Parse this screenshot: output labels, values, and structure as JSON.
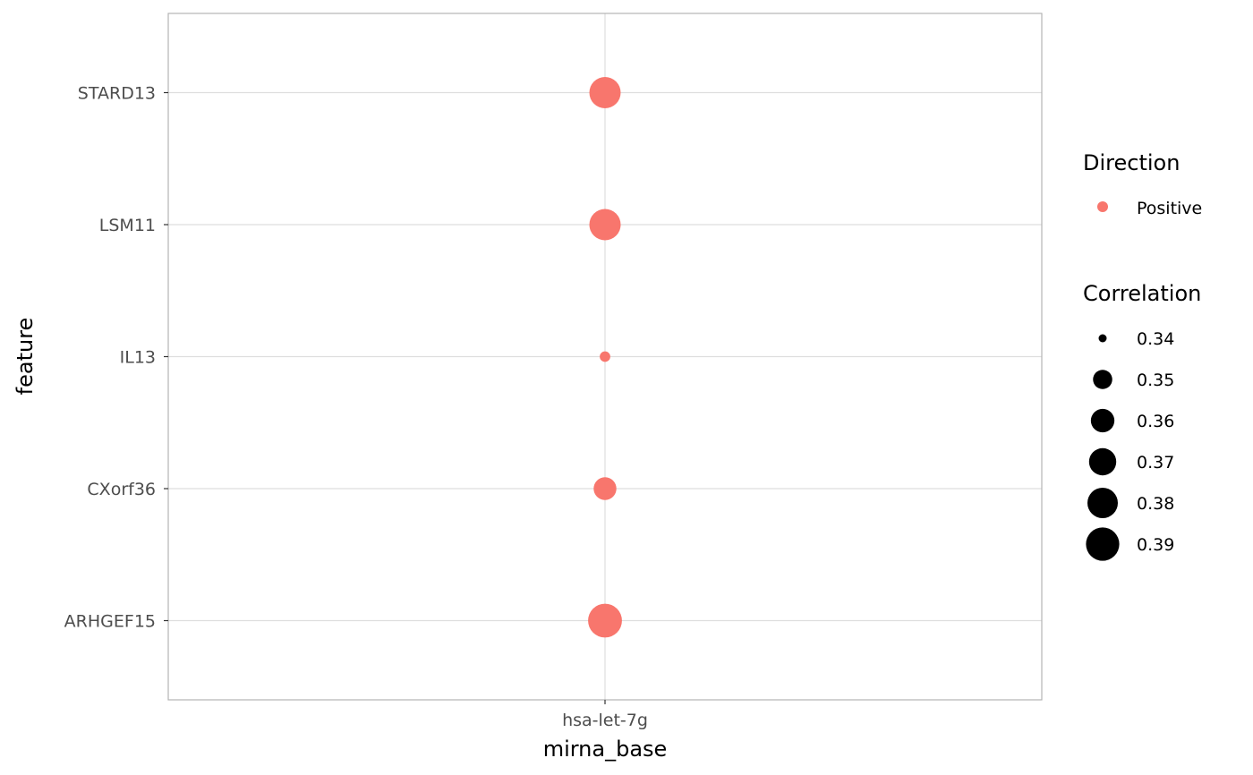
{
  "chart_data": {
    "type": "scatter",
    "title": "",
    "xlabel": "mirna_base",
    "ylabel": "feature",
    "x_categories": [
      "hsa-let-7g"
    ],
    "y_categories": [
      "ARHGEF15",
      "CXorf36",
      "IL13",
      "LSM11",
      "STARD13"
    ],
    "points": [
      {
        "x": "hsa-let-7g",
        "y": "STARD13",
        "correlation": 0.383,
        "direction": "Positive"
      },
      {
        "x": "hsa-let-7g",
        "y": "LSM11",
        "correlation": 0.383,
        "direction": "Positive"
      },
      {
        "x": "hsa-let-7g",
        "y": "IL13",
        "correlation": 0.336,
        "direction": "Positive"
      },
      {
        "x": "hsa-let-7g",
        "y": "CXorf36",
        "correlation": 0.358,
        "direction": "Positive"
      },
      {
        "x": "hsa-let-7g",
        "y": "ARHGEF15",
        "correlation": 0.392,
        "direction": "Positive"
      }
    ],
    "grid": true,
    "legend": {
      "placement": "right",
      "color": {
        "title": "Direction",
        "entries": [
          {
            "label": "Positive",
            "color": "#F8766D"
          }
        ]
      },
      "size": {
        "title": "Correlation",
        "entries": [
          {
            "label": "0.34",
            "value": 0.34
          },
          {
            "label": "0.35",
            "value": 0.35
          },
          {
            "label": "0.36",
            "value": 0.36
          },
          {
            "label": "0.37",
            "value": 0.37
          },
          {
            "label": "0.38",
            "value": 0.38
          },
          {
            "label": "0.39",
            "value": 0.39
          }
        ]
      }
    }
  }
}
